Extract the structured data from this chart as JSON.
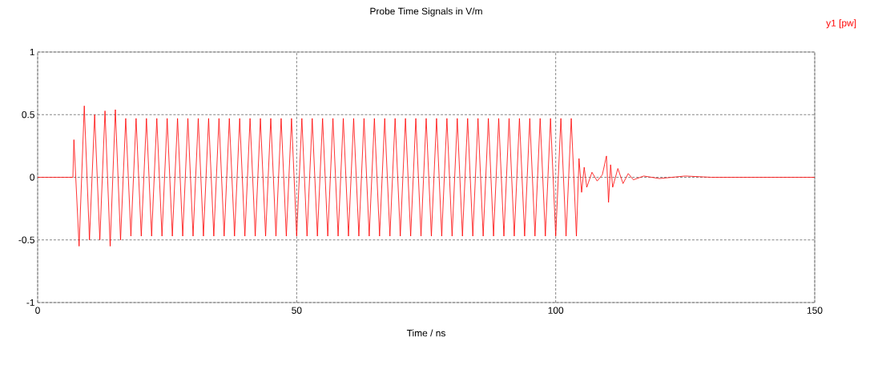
{
  "chart_data": {
    "type": "line",
    "title": "Probe Time Signals in V/m",
    "xlabel": "Time / ns",
    "x": [
      0,
      6.8,
      7,
      8,
      9,
      10,
      11,
      12,
      13,
      14,
      15,
      16,
      17,
      18,
      19,
      20,
      21,
      22,
      23,
      24,
      25,
      26,
      27,
      28,
      29,
      30,
      31,
      32,
      33,
      34,
      35,
      36,
      37,
      38,
      39,
      40,
      41,
      42,
      43,
      44,
      45,
      46,
      47,
      48,
      49,
      50,
      51,
      52,
      53,
      54,
      55,
      56,
      57,
      58,
      59,
      60,
      61,
      62,
      63,
      64,
      65,
      66,
      67,
      68,
      69,
      70,
      71,
      72,
      73,
      74,
      75,
      76,
      77,
      78,
      79,
      80,
      81,
      82,
      83,
      84,
      85,
      86,
      87,
      88,
      89,
      90,
      91,
      92,
      93,
      94,
      95,
      96,
      97,
      98,
      99,
      100,
      101,
      102,
      103,
      104,
      104.5,
      105,
      105.5,
      106,
      107,
      108,
      109,
      109.8,
      110.2,
      110.6,
      111,
      112,
      113,
      114,
      115,
      117,
      120,
      125,
      130,
      150
    ],
    "series": [
      {
        "name": "y1 [pw]",
        "color": "#ff0000",
        "values": [
          0,
          0,
          0.3,
          -0.55,
          0.57,
          -0.5,
          0.5,
          -0.5,
          0.53,
          -0.55,
          0.54,
          -0.5,
          0.47,
          -0.47,
          0.47,
          -0.47,
          0.47,
          -0.47,
          0.47,
          -0.47,
          0.47,
          -0.47,
          0.47,
          -0.47,
          0.47,
          -0.47,
          0.47,
          -0.47,
          0.47,
          -0.47,
          0.47,
          -0.47,
          0.47,
          -0.47,
          0.47,
          -0.47,
          0.47,
          -0.47,
          0.47,
          -0.47,
          0.47,
          -0.47,
          0.47,
          -0.47,
          0.47,
          -0.47,
          0.47,
          -0.47,
          0.47,
          -0.47,
          0.47,
          -0.47,
          0.47,
          -0.47,
          0.47,
          -0.47,
          0.47,
          -0.47,
          0.47,
          -0.47,
          0.47,
          -0.47,
          0.47,
          -0.47,
          0.47,
          -0.47,
          0.47,
          -0.47,
          0.47,
          -0.47,
          0.47,
          -0.47,
          0.47,
          -0.47,
          0.47,
          -0.47,
          0.47,
          -0.47,
          0.47,
          -0.47,
          0.47,
          -0.47,
          0.47,
          -0.47,
          0.47,
          -0.47,
          0.47,
          -0.47,
          0.47,
          -0.47,
          0.47,
          -0.47,
          0.47,
          -0.47,
          0.47,
          -0.47,
          0.47,
          -0.47,
          0.47,
          -0.47,
          0.15,
          -0.12,
          0.08,
          -0.08,
          0.04,
          -0.03,
          0.02,
          0.17,
          -0.2,
          0.1,
          -0.08,
          0.07,
          -0.05,
          0.03,
          -0.02,
          0.01,
          -0.01,
          0.01,
          0,
          0
        ]
      }
    ],
    "xlim": [
      0,
      150
    ],
    "ylim": [
      -1,
      1
    ],
    "xticks": [
      0,
      50,
      100,
      150
    ],
    "yticks": [
      -1,
      -0.5,
      0,
      0.5,
      1
    ],
    "grid": true,
    "legend": "top right",
    "marker": "none",
    "line_style": "solid"
  }
}
